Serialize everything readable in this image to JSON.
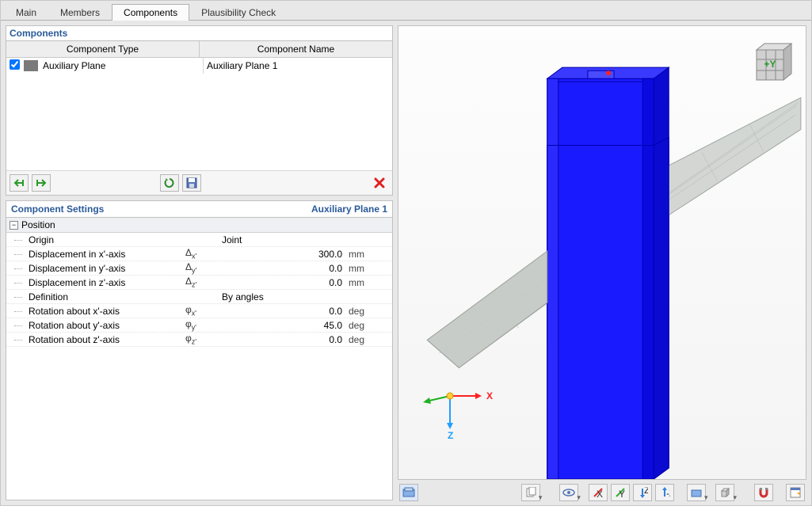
{
  "tabs": {
    "t0": "Main",
    "t1": "Members",
    "t2": "Components",
    "t3": "Plausibility Check",
    "active": 2
  },
  "components": {
    "title": "Components",
    "head_type": "Component Type",
    "head_name": "Component Name",
    "row0_type": "Auxiliary Plane",
    "row0_name": "Auxiliary Plane 1",
    "row0_checked": true,
    "icon_color": "#7a7a7a"
  },
  "settings": {
    "title": "Component Settings",
    "subtitle": "Auxiliary Plane 1",
    "group": "Position",
    "rows": [
      {
        "label": "Origin",
        "sym": "",
        "val": "Joint",
        "unit": "",
        "valAlign": "left"
      },
      {
        "label": "Displacement in x'-axis",
        "sym": "Δx'",
        "val": "300.0",
        "unit": "mm",
        "valAlign": "right"
      },
      {
        "label": "Displacement in y'-axis",
        "sym": "Δy'",
        "val": "0.0",
        "unit": "mm",
        "valAlign": "right"
      },
      {
        "label": "Displacement in z'-axis",
        "sym": "Δz'",
        "val": "0.0",
        "unit": "mm",
        "valAlign": "right"
      },
      {
        "label": "Definition",
        "sym": "",
        "val": "By angles",
        "unit": "",
        "valAlign": "left"
      },
      {
        "label": "Rotation about x'-axis",
        "sym": "φx'",
        "val": "0.0",
        "unit": "deg",
        "valAlign": "right"
      },
      {
        "label": "Rotation about y'-axis",
        "sym": "φy'",
        "val": "45.0",
        "unit": "deg",
        "valAlign": "right"
      },
      {
        "label": "Rotation about z'-axis",
        "sym": "φz'",
        "val": "0.0",
        "unit": "deg",
        "valAlign": "right"
      }
    ]
  },
  "viewport": {
    "beam_color": "#1a1aff",
    "beam_edge": "#0000b0",
    "plane_fill": "#c8ccc8",
    "plane_edge": "#9aa09a",
    "bg_top": "#fdfdfd",
    "bg_bot": "#f4f4f4",
    "node_color": "#ff2020",
    "axis": {
      "x_color": "#ff2020",
      "y_color": "#20b020",
      "z_color": "#20a0ff",
      "x_label": "X",
      "y_label": "Y",
      "z_label": "Z"
    },
    "navcube": {
      "face": "#d0d0d0",
      "edge": "#888",
      "label": "+Y",
      "label_color": "#2a9a2a"
    }
  },
  "icons": {
    "close": "✕"
  }
}
